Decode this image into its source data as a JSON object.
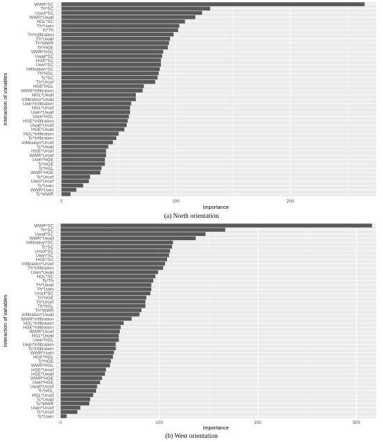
{
  "chart_data": [
    {
      "type": "bar",
      "orientation": "horizontal",
      "caption": "(a) North orientation",
      "xlabel": "Importance",
      "ylabel": "Interaction of variables",
      "xlim": [
        -5,
        275
      ],
      "xticks": [
        0,
        100,
        200
      ],
      "grid": true,
      "categories": [
        "WWR*SC",
        "Th*SC",
        "Uroof*SC",
        "WWR*Uwall",
        "HGL*SC",
        "Th*Uwin",
        "Tc*Th",
        "Th*Infiltration",
        "Th*Uwall",
        "Th*WWR",
        "Th*HGE",
        "WWR*HGL",
        "Uwall*SC",
        "HGE*SC",
        "Uwin*SC",
        "Infiltration*SC",
        "Th*HGL",
        "Tc*SC",
        "Th*Uroof",
        "HGE*HGL",
        "WWR*Infiltration",
        "HGL*Uwall",
        "Infiltration*Uwall",
        "Uwin*Infiltration",
        "HGL*Uroof",
        "Uwin*Uwall",
        "Uwin*HGL",
        "HGE*Infiltration",
        "Uwall*Uroof",
        "HGE*Uwall",
        "HGL*Infiltration",
        "Tc*Infiltration",
        "Infiltration*Uroof",
        "Tc*Uwall",
        "HGE*Uroof",
        "WWR*Uroof",
        "Uwin*HGE",
        "Tc*HGE",
        "Tc*HGL",
        "WWR*HGE",
        "Tc*Uroof",
        "Uwin*Uroof",
        "Tc*Uwin",
        "WWR*Uwin",
        "Tc*WWR"
      ],
      "values": [
        265,
        130,
        123,
        117,
        108,
        103,
        102,
        98,
        95,
        94,
        93,
        89,
        88,
        87,
        87,
        86,
        85,
        84,
        82,
        72,
        71,
        65,
        65,
        61,
        60,
        60,
        59,
        58,
        57,
        55,
        50,
        48,
        45,
        41,
        39,
        39,
        38,
        38,
        35,
        34,
        25,
        24,
        19,
        13,
        8
      ]
    },
    {
      "type": "bar",
      "orientation": "horizontal",
      "caption": "(b) West orientation",
      "xlabel": "Importance",
      "ylabel": "Interaction of variables",
      "xlim": [
        -5,
        320
      ],
      "xticks": [
        0,
        100,
        200,
        300
      ],
      "grid": true,
      "categories": [
        "WWR*SC",
        "Th*SC",
        "Uwall*SC",
        "WWR*Uwall",
        "Infiltration*SC",
        "Tc*SC",
        "Uroof*SC",
        "Uwin*SC",
        "HGE*SC",
        "Infiltration*Uroof",
        "Th*Infiltration",
        "Uwin*Uwall",
        "HGL*SC",
        "Tc*Th",
        "Th*Uwall",
        "Th*Uwin",
        "Uroof*SC",
        "Th*HGE",
        "Th*Uroof",
        "Th*HGL",
        "Th*WWR",
        "Infiltration*Uwall",
        "WWR*Infiltration",
        "HGL*Infiltration",
        "HGE*Infiltration",
        "WWR*Uroof",
        "HGL*Uwall",
        "Uwin*HGL",
        "Uwin*Infiltration",
        "Tc*Infiltration",
        "WWR*Uwin",
        "HGE*HGL",
        "Tc*HGE",
        "WWR*HGL",
        "HGE*Uroof",
        "HGE*Uwall",
        "WWR*HGE",
        "Uwin*HGE",
        "Uwall*Uroof",
        "Tc*HGL",
        "HGL*Uroof",
        "Tc*Uwall",
        "Tc*WWR",
        "Uwin*Uroof",
        "Tc*Uroof",
        "Tc*Uwin"
      ],
      "values": [
        316,
        167,
        147,
        137,
        114,
        113,
        111,
        110,
        108,
        106,
        104,
        99,
        96,
        94,
        92,
        92,
        91,
        87,
        86,
        86,
        82,
        80,
        72,
        64,
        61,
        60,
        59,
        59,
        56,
        56,
        54,
        53,
        51,
        50,
        46,
        45,
        42,
        40,
        37,
        36,
        33,
        30,
        29,
        20,
        17,
        6
      ]
    }
  ]
}
